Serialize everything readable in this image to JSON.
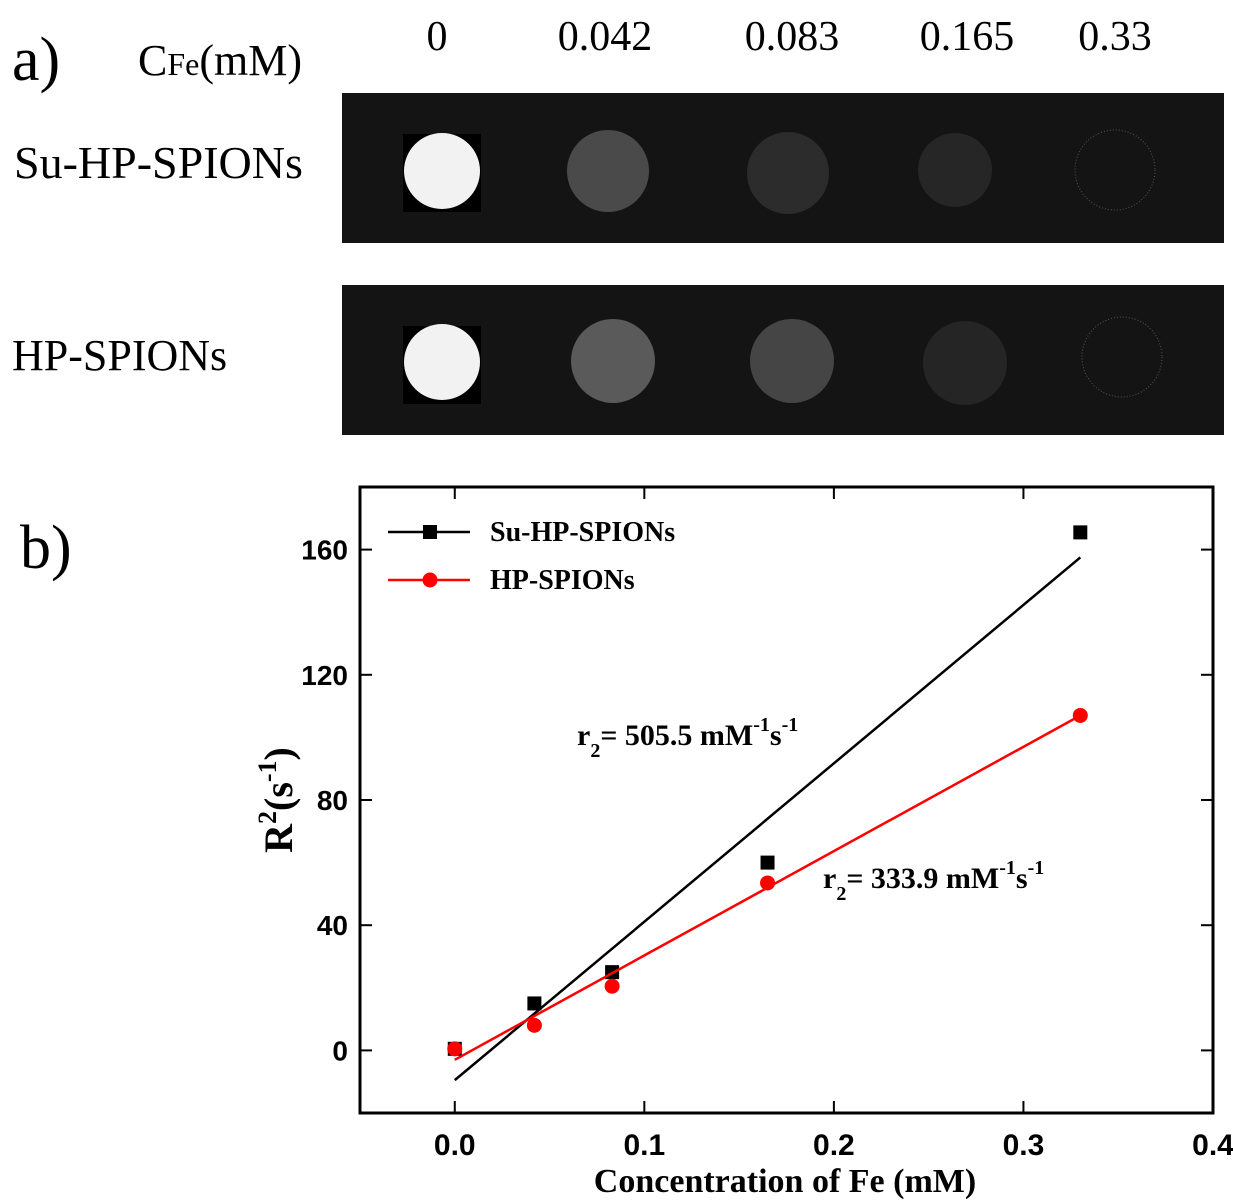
{
  "panel_a": {
    "label": "a)",
    "conc_label": [
      "C",
      "Fe",
      "(mM)"
    ],
    "columns": [
      "0",
      "0.042",
      "0.083",
      "0.165",
      "0.33"
    ],
    "rows": [
      "Su-HP-SPIONs",
      "HP-SPIONs"
    ]
  },
  "chart_data": {
    "type": "scatter",
    "panel_label": "b)",
    "x_label": "Concentration of Fe (mM)",
    "y_label": [
      "R",
      "2",
      "(s",
      "-1",
      ")"
    ],
    "xlim": [
      -0.05,
      0.4
    ],
    "xticks": [
      {
        "value": 0,
        "label": "0.0"
      },
      {
        "value": 0.1,
        "label": "0.1"
      },
      {
        "value": 0.2,
        "label": "0.2"
      },
      {
        "value": 0.3,
        "label": "0.3"
      },
      {
        "value": 0.4,
        "label": "0.4"
      }
    ],
    "ylim": [
      -20,
      180
    ],
    "yticks": [
      0,
      40,
      80,
      120,
      160
    ],
    "legend": "upper left",
    "series": [
      {
        "name": "Su-HP-SPIONs",
        "color": "#000000",
        "marker": "square",
        "x": [
          0,
          0.042,
          0.083,
          0.165,
          0.33
        ],
        "values": [
          0.5,
          15,
          25,
          60,
          165.5
        ],
        "fit": {
          "x": [
            0,
            0.33
          ],
          "values": [
            -9.5,
            157.5
          ]
        }
      },
      {
        "name": "HP-SPIONs",
        "color": "#ff0000",
        "marker": "circle",
        "x": [
          0,
          0.042,
          0.083,
          0.165,
          0.33
        ],
        "values": [
          0.5,
          8,
          20.5,
          53.5,
          107
        ],
        "fit": {
          "x": [
            0,
            0.33
          ],
          "values": [
            -3,
            107
          ]
        }
      }
    ],
    "annotations": [
      [
        "r",
        "2",
        "= 505.5 mM",
        "-1",
        "s",
        "-1"
      ],
      [
        "r",
        "2",
        "= 333.9 mM",
        "-1",
        "s",
        "-1"
      ]
    ]
  }
}
